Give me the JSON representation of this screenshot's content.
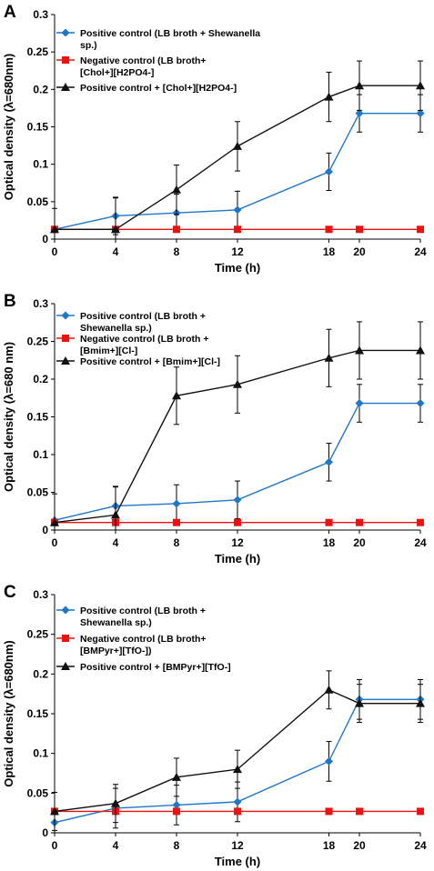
{
  "chart_data": [
    {
      "type": "line",
      "panel_label": "A",
      "xlabel": "Time (h)",
      "ylabel": "Optical density (λ=680nm)",
      "x": [
        0,
        4,
        8,
        12,
        18,
        20,
        24
      ],
      "x_ticks": [
        "0",
        "4",
        "8",
        "12",
        "18",
        "20",
        "24"
      ],
      "ylim": [
        0,
        0.3
      ],
      "y_ticks": [
        "0",
        "0.05",
        "0.1",
        "0.15",
        "0.2",
        "0.25",
        "0.3"
      ],
      "grid": false,
      "legend_position": "top-left",
      "series": [
        {
          "name": "Positive control (LB broth + Shewanella sp.)",
          "legend_lines": [
            "Positive control (LB broth + Shewanella",
            "sp.)"
          ],
          "color": "#1f77c8",
          "marker": "diamond",
          "values": [
            0.013,
            0.031,
            0.035,
            0.039,
            0.09,
            0.168,
            0.168
          ],
          "errors": [
            0.0,
            0.025,
            0.025,
            0.025,
            0.025,
            0.025,
            0.025
          ]
        },
        {
          "name": "Negative control (LB broth+ [Chol+][H2PO4-]",
          "legend_lines": [
            "Negative control (LB broth+",
            "[Chol+][H2PO4-]"
          ],
          "color": "#ee1111",
          "marker": "square",
          "values": [
            0.013,
            0.013,
            0.013,
            0.013,
            0.013,
            0.013,
            0.013
          ],
          "errors": [
            0,
            0,
            0,
            0,
            0,
            0,
            0
          ]
        },
        {
          "name": "Positive control + [Chol+][H2PO4-]",
          "legend_lines": [
            "Positive control + [Chol+][H2PO4-]"
          ],
          "color": "#111111",
          "marker": "triangle",
          "values": [
            0.013,
            0.013,
            0.066,
            0.124,
            0.19,
            0.205,
            0.205
          ],
          "errors": [
            0.028,
            0.042,
            0.033,
            0.033,
            0.033,
            0.033,
            0.033
          ]
        }
      ]
    },
    {
      "type": "line",
      "panel_label": "B",
      "xlabel": "Time (h)",
      "ylabel": "Optical density (λ=680 nm)",
      "x": [
        0,
        4,
        8,
        12,
        18,
        20,
        24
      ],
      "x_ticks": [
        "0",
        "4",
        "8",
        "12",
        "18",
        "20",
        "24"
      ],
      "ylim": [
        0,
        0.3
      ],
      "y_ticks": [
        "0",
        "0.05",
        "0.1",
        "0.15",
        "0.2",
        "0.25",
        "0.3"
      ],
      "grid": false,
      "legend_position": "top-left",
      "series": [
        {
          "name": "Positive control (LB broth + Shewanella sp.)",
          "legend_lines": [
            "Positive control (LB broth +",
            "Shewanella sp.)"
          ],
          "color": "#1f77c8",
          "marker": "diamond",
          "values": [
            0.013,
            0.032,
            0.035,
            0.04,
            0.09,
            0.168,
            0.168
          ],
          "errors": [
            0.0,
            0.025,
            0.025,
            0.025,
            0.025,
            0.025,
            0.025
          ]
        },
        {
          "name": "Negative control (LB broth + [Bmim+][Cl-]",
          "legend_lines": [
            "Negative control  (LB broth +",
            "[Bmim+][Cl-]"
          ],
          "color": "#ee1111",
          "marker": "square",
          "values": [
            0.01,
            0.01,
            0.01,
            0.01,
            0.01,
            0.01,
            0.01
          ],
          "errors": [
            0,
            0,
            0,
            0,
            0,
            0,
            0
          ]
        },
        {
          "name": "Positive control + [Bmim+][Cl-]",
          "legend_lines": [
            "Positive control + [Bmim+][Cl-]"
          ],
          "color": "#111111",
          "marker": "triangle",
          "values": [
            0.01,
            0.02,
            0.178,
            0.193,
            0.228,
            0.238,
            0.238
          ],
          "errors": [
            0.038,
            0.038,
            0.038,
            0.038,
            0.038,
            0.038,
            0.038
          ]
        }
      ]
    },
    {
      "type": "line",
      "panel_label": "C",
      "xlabel": "Time (h)",
      "ylabel": "Optical density (λ=680nm)",
      "x": [
        0,
        4,
        8,
        12,
        18,
        20,
        24
      ],
      "x_ticks": [
        "0",
        "4",
        "8",
        "12",
        "18",
        "20",
        "24"
      ],
      "ylim": [
        0,
        0.3
      ],
      "y_ticks": [
        "0",
        "0.05",
        "0.1",
        "0.15",
        "0.2",
        "0.25",
        "0.3"
      ],
      "grid": false,
      "legend_position": "top-left",
      "series": [
        {
          "name": "Positive control (LB broth + Shewanella sp.)",
          "legend_lines": [
            "Positive control (LB broth +",
            "Shewanella sp.)"
          ],
          "color": "#1f77c8",
          "marker": "diamond",
          "values": [
            0.013,
            0.031,
            0.035,
            0.039,
            0.09,
            0.168,
            0.168
          ],
          "errors": [
            0.0,
            0.025,
            0.025,
            0.025,
            0.025,
            0.025,
            0.025
          ]
        },
        {
          "name": "Negative control (LB broth+ [BMPyr+][TfO-])",
          "legend_lines": [
            "Negative control (LB broth+",
            "[BMPyr+][TfO-])"
          ],
          "color": "#ee1111",
          "marker": "square",
          "values": [
            0.027,
            0.027,
            0.027,
            0.027,
            0.027,
            0.027,
            0.027
          ],
          "errors": [
            0,
            0,
            0,
            0,
            0,
            0,
            0
          ]
        },
        {
          "name": "Positive control + [BMPyr+][TfO-]",
          "legend_lines": [
            "Positive control + [BMPyr+][TfO-]"
          ],
          "color": "#111111",
          "marker": "triangle",
          "values": [
            0.027,
            0.037,
            0.07,
            0.08,
            0.18,
            0.163,
            0.163
          ],
          "errors": [
            0.024,
            0.024,
            0.024,
            0.024,
            0.024,
            0.024,
            0.024
          ]
        }
      ]
    }
  ]
}
